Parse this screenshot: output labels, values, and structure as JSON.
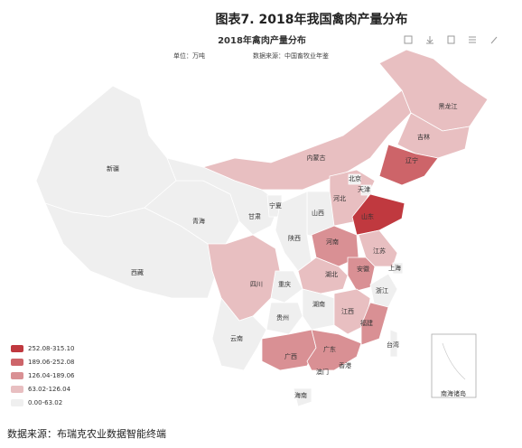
{
  "header": {
    "title": "图表7. 2018年我国禽肉产量分布"
  },
  "map": {
    "title": "2018年禽肉产量分布",
    "unit": "单位：万吨",
    "source": "数据来源：中国畜牧业年鉴",
    "legend": [
      {
        "label": "252.08-315.10",
        "color": "#c0393f"
      },
      {
        "label": "189.06-252.08",
        "color": "#cd6469"
      },
      {
        "label": "126.04-189.06",
        "color": "#d99094"
      },
      {
        "label": "63.02-126.04",
        "color": "#e8bfc1"
      },
      {
        "label": "0.00-63.02",
        "color": "#efefef"
      }
    ],
    "provinces": [
      {
        "name": "新疆",
        "color": "#efefef"
      },
      {
        "name": "西藏",
        "color": "#efefef"
      },
      {
        "name": "青海",
        "color": "#efefef"
      },
      {
        "name": "甘肃",
        "color": "#efefef"
      },
      {
        "name": "宁夏",
        "color": "#efefef"
      },
      {
        "name": "内蒙古",
        "color": "#e8bfc1"
      },
      {
        "name": "黑龙江",
        "color": "#e8bfc1"
      },
      {
        "name": "吉林",
        "color": "#e8bfc1"
      },
      {
        "name": "辽宁",
        "color": "#cd6469"
      },
      {
        "name": "河北",
        "color": "#e8bfc1"
      },
      {
        "name": "北京",
        "color": "#efefef"
      },
      {
        "name": "天津",
        "color": "#efefef"
      },
      {
        "name": "山西",
        "color": "#efefef"
      },
      {
        "name": "山东",
        "color": "#c0393f"
      },
      {
        "name": "陕西",
        "color": "#efefef"
      },
      {
        "name": "河南",
        "color": "#d99094"
      },
      {
        "name": "江苏",
        "color": "#e8bfc1"
      },
      {
        "name": "安徽",
        "color": "#d99094"
      },
      {
        "name": "上海",
        "color": "#efefef"
      },
      {
        "name": "四川",
        "color": "#e8bfc1"
      },
      {
        "name": "重庆",
        "color": "#efefef"
      },
      {
        "name": "湖北",
        "color": "#e8bfc1"
      },
      {
        "name": "浙江",
        "color": "#efefef"
      },
      {
        "name": "湖南",
        "color": "#efefef"
      },
      {
        "name": "江西",
        "color": "#e8bfc1"
      },
      {
        "name": "贵州",
        "color": "#efefef"
      },
      {
        "name": "福建",
        "color": "#d99094"
      },
      {
        "name": "云南",
        "color": "#efefef"
      },
      {
        "name": "广西",
        "color": "#d99094"
      },
      {
        "name": "广东",
        "color": "#d99094"
      },
      {
        "name": "海南",
        "color": "#efefef"
      },
      {
        "name": "台湾",
        "color": "#efefef"
      }
    ],
    "other_labels": [
      "香港",
      "澳门",
      "南海诸岛"
    ]
  },
  "footer": {
    "source": "数据来源：布瑞克农业数据智能终端"
  }
}
